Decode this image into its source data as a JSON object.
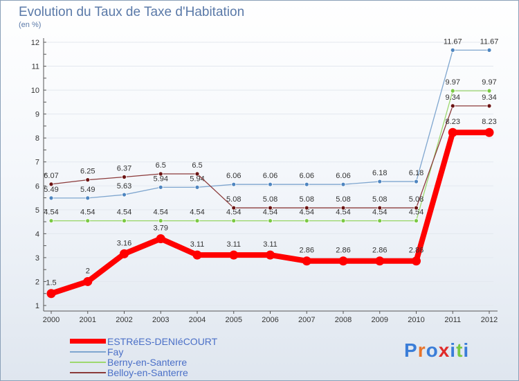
{
  "chart_data": {
    "type": "line",
    "title": "Evolution du Taux de Taxe d'Habitation",
    "subtitle": "(en %)",
    "x": [
      "2000",
      "2001",
      "2002",
      "2003",
      "2004",
      "2005",
      "2006",
      "2007",
      "2008",
      "2009",
      "2010",
      "2011",
      "2012"
    ],
    "yticks": [
      "1",
      "2",
      "3",
      "4",
      "5",
      "6",
      "7",
      "8",
      "9",
      "10",
      "11",
      "12"
    ],
    "ylim": [
      1,
      12
    ],
    "series": [
      {
        "name": "Fay",
        "color": "#7fa6cf",
        "dot": "#4f86c0",
        "values": [
          5.49,
          5.49,
          5.63,
          5.94,
          5.94,
          6.06,
          6.06,
          6.06,
          6.06,
          6.18,
          6.18,
          11.67,
          11.67
        ],
        "labels": [
          "5.49",
          "5.49",
          "5.63",
          "5.94",
          "5.94",
          "6.06",
          "6.06",
          "6.06",
          "6.06",
          "6.18",
          "6.18",
          "11.67",
          "11.67"
        ]
      },
      {
        "name": "Berny-en-Santerre",
        "color": "#9dd86e",
        "dot": "#7ac943",
        "values": [
          4.54,
          4.54,
          4.54,
          4.54,
          4.54,
          4.54,
          4.54,
          4.54,
          4.54,
          4.54,
          4.54,
          9.97,
          9.97
        ],
        "labels": [
          "4.54",
          "4.54",
          "4.54",
          "4.54",
          "4.54",
          "4.54",
          "4.54",
          "4.54",
          "4.54",
          "4.54",
          "4.54",
          "9.97",
          "9.97"
        ]
      },
      {
        "name": "Belloy-en-Santerre",
        "color": "#8b3a3a",
        "dot": "#6b1414",
        "values": [
          6.07,
          6.25,
          6.37,
          6.5,
          6.5,
          5.08,
          5.08,
          5.08,
          5.08,
          5.08,
          5.08,
          9.34,
          9.34
        ],
        "labels": [
          "6.07",
          "6.25",
          "6.37",
          "6.5",
          "6.5",
          "5.08",
          "5.08",
          "5.08",
          "5.08",
          "5.08",
          "5.08",
          "9.34",
          "9.34"
        ]
      },
      {
        "name": "ESTRéES-DENIéCOURT",
        "color": "#ff0000",
        "dot": "#ff0000",
        "values": [
          1.5,
          2,
          3.16,
          3.79,
          3.11,
          3.11,
          3.11,
          2.86,
          2.86,
          2.86,
          2.86,
          8.23,
          8.23
        ],
        "labels": [
          "1.5",
          "2",
          "3.16",
          "3.79",
          "3.11",
          "3.11",
          "3.11",
          "2.86",
          "2.86",
          "2.86",
          "2.86",
          "8.23",
          "8.23"
        ]
      }
    ],
    "legend": {
      "items": [
        "ESTRéES-DENIéCOURT",
        "Fay",
        "Berny-en-Santerre",
        "Belloy-en-Santerre"
      ],
      "colors": [
        "#ff0000",
        "#7fa6cf",
        "#9dd86e",
        "#8b3a3a"
      ]
    }
  },
  "brand": {
    "logo_letters": [
      "P",
      "r",
      "o",
      "x",
      "i",
      "t",
      "i"
    ],
    "logo_colors": [
      "#3a7dd8",
      "#e8742a",
      "#3a7dd8",
      "#e02b2b",
      "#3a7dd8",
      "#7ac943",
      "#3a7dd8"
    ]
  }
}
